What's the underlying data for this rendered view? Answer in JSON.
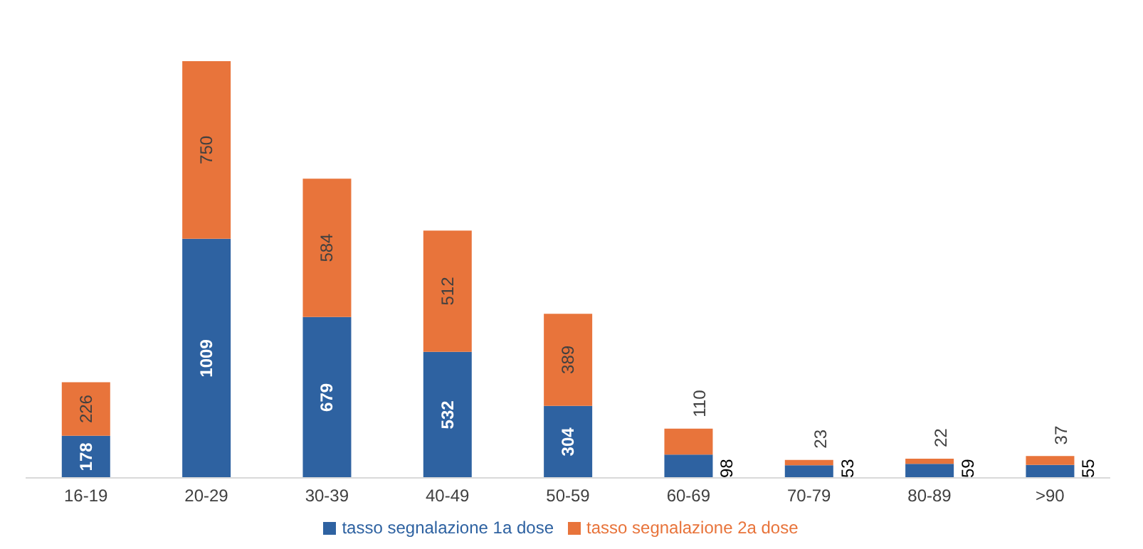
{
  "chart_data": {
    "type": "bar",
    "stacked": true,
    "categories": [
      "16-19",
      "20-29",
      "30-39",
      "40-49",
      "50-59",
      "60-69",
      "70-79",
      "80-89",
      ">90"
    ],
    "series": [
      {
        "name": "tasso segnalazione 1a dose",
        "color": "#2e62a1",
        "values": [
          178,
          1009,
          679,
          532,
          304,
          98,
          53,
          59,
          55
        ]
      },
      {
        "name": "tasso segnalazione 2a dose",
        "color": "#e8743b",
        "values": [
          226,
          750,
          584,
          512,
          389,
          110,
          23,
          22,
          37
        ]
      }
    ],
    "data_labels": true,
    "legend": "bottom",
    "grid": false
  }
}
